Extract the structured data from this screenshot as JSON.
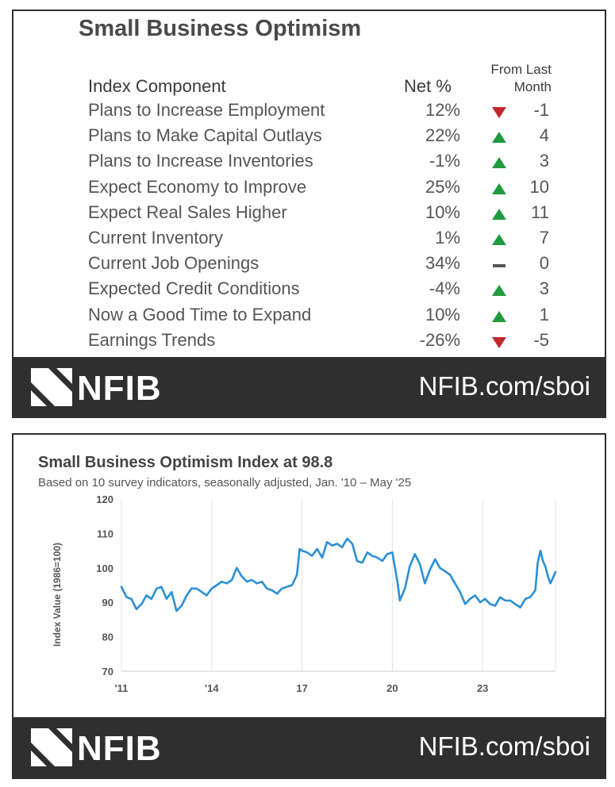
{
  "table": {
    "title": "Small Business Optimism",
    "header_component": "Index Component",
    "header_net": "Net %",
    "header_change_line1": "From Last",
    "header_change_line2": "Month",
    "rows": [
      {
        "label": "Plans to Increase Employment",
        "net": "12%",
        "change": "-1",
        "direction": "down"
      },
      {
        "label": "Plans to Make Capital Outlays",
        "net": "22%",
        "change": "4",
        "direction": "up"
      },
      {
        "label": "Plans to Increase Inventories",
        "net": "-1%",
        "change": "3",
        "direction": "up"
      },
      {
        "label": "Expect Economy to Improve",
        "net": "25%",
        "change": "10",
        "direction": "up"
      },
      {
        "label": "Expect Real Sales Higher",
        "net": "10%",
        "change": "11",
        "direction": "up"
      },
      {
        "label": "Current Inventory",
        "net": "1%",
        "change": "7",
        "direction": "up"
      },
      {
        "label": "Current Job Openings",
        "net": "34%",
        "change": "0",
        "direction": "flat"
      },
      {
        "label": "Expected Credit Conditions",
        "net": "-4%",
        "change": "3",
        "direction": "up"
      },
      {
        "label": "Now a Good Time to Expand",
        "net": "10%",
        "change": "1",
        "direction": "up"
      },
      {
        "label": "Earnings Trends",
        "net": "-26%",
        "change": "-5",
        "direction": "down"
      }
    ]
  },
  "footer": {
    "logo_text": "NFIB",
    "link": "NFIB.com/sboi"
  },
  "colors": {
    "up": "#1f9a3f",
    "down": "#c0282d",
    "flat": "#555555",
    "line": "#2b8fd6",
    "footer_bg": "#2f2f2f"
  },
  "chart_data": {
    "type": "line",
    "title": "Small Business Optimism Index at 98.8",
    "subtitle": "Based on 10 survey indicators, seasonally adjusted,  Jan. '10 – May '25",
    "ylabel": "Index Value (1986=100)",
    "xlabel": "",
    "ylim": [
      70,
      120
    ],
    "yticks": [
      70,
      80,
      90,
      100,
      110,
      120
    ],
    "xticks": [
      {
        "label": "'11",
        "x": 2011.0
      },
      {
        "label": "'14",
        "x": 2014.0
      },
      {
        "label": "17",
        "x": 2017.0
      },
      {
        "label": "20",
        "x": 2020.0
      },
      {
        "label": "23",
        "x": 2023.0
      }
    ],
    "xlim": [
      2011.0,
      2025.42
    ],
    "grid": "vertical",
    "series": [
      {
        "name": "",
        "x": [
          2011.0,
          2011.17,
          2011.33,
          2011.5,
          2011.67,
          2011.83,
          2012.0,
          2012.17,
          2012.33,
          2012.5,
          2012.67,
          2012.83,
          2013.0,
          2013.17,
          2013.33,
          2013.5,
          2013.67,
          2013.83,
          2014.0,
          2014.17,
          2014.33,
          2014.5,
          2014.67,
          2014.83,
          2015.0,
          2015.17,
          2015.33,
          2015.5,
          2015.67,
          2015.83,
          2016.0,
          2016.17,
          2016.33,
          2016.5,
          2016.67,
          2016.83,
          2016.92,
          2017.0,
          2017.17,
          2017.33,
          2017.5,
          2017.67,
          2017.83,
          2018.0,
          2018.17,
          2018.33,
          2018.5,
          2018.67,
          2018.83,
          2019.0,
          2019.17,
          2019.33,
          2019.5,
          2019.67,
          2019.83,
          2020.0,
          2020.17,
          2020.25,
          2020.42,
          2020.58,
          2020.75,
          2020.92,
          2021.08,
          2021.25,
          2021.42,
          2021.58,
          2021.75,
          2021.92,
          2022.08,
          2022.25,
          2022.42,
          2022.58,
          2022.75,
          2022.92,
          2023.08,
          2023.25,
          2023.42,
          2023.58,
          2023.75,
          2023.92,
          2024.08,
          2024.25,
          2024.42,
          2024.58,
          2024.75,
          2024.83,
          2024.92,
          2025.0,
          2025.08,
          2025.17,
          2025.25,
          2025.33,
          2025.42
        ],
        "y": [
          94.5,
          91.5,
          91.0,
          88.0,
          89.5,
          92.0,
          91.0,
          94.0,
          94.5,
          91.0,
          93.0,
          87.5,
          89.0,
          92.0,
          94.0,
          94.0,
          93.0,
          92.0,
          94.0,
          95.0,
          96.0,
          95.5,
          96.5,
          100.0,
          97.5,
          96.0,
          96.5,
          95.5,
          96.0,
          94.0,
          93.5,
          92.5,
          94.0,
          94.5,
          95.0,
          98.0,
          105.5,
          105.0,
          104.5,
          103.5,
          105.5,
          103.0,
          107.5,
          106.5,
          107.0,
          106.0,
          108.5,
          107.0,
          102.0,
          101.5,
          104.5,
          103.5,
          103.0,
          102.0,
          104.0,
          104.5,
          96.0,
          90.5,
          94.0,
          100.5,
          104.0,
          101.0,
          95.5,
          99.5,
          102.5,
          100.0,
          99.0,
          98.0,
          95.5,
          93.0,
          89.5,
          91.0,
          92.0,
          90.0,
          91.0,
          89.5,
          89.0,
          91.5,
          90.5,
          90.5,
          89.5,
          88.5,
          91.0,
          91.5,
          93.5,
          101.5,
          105.0,
          102.0,
          100.5,
          97.5,
          95.5,
          97.0,
          98.8
        ]
      }
    ]
  }
}
